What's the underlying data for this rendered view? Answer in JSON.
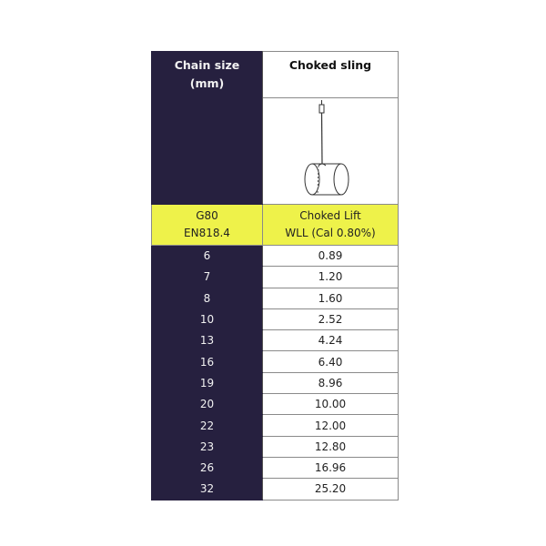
{
  "header": {
    "col1": "Chain size",
    "col1_unit": "(mm)",
    "col2": "Choked sling"
  },
  "subheader": {
    "col1_line1": "G80",
    "col1_line2": "EN818.4",
    "col2_line1": "Choked Lift",
    "col2_line2": "WLL (Cal 0.80%)"
  },
  "colors": {
    "dark": "#26203f",
    "highlight": "#eef24a"
  },
  "illustration": "choked-sling-drum-icon",
  "rows": [
    {
      "size": "6",
      "wll": "0.89"
    },
    {
      "size": "7",
      "wll": "1.20"
    },
    {
      "size": "8",
      "wll": "1.60"
    },
    {
      "size": "10",
      "wll": "2.52"
    },
    {
      "size": "13",
      "wll": "4.24"
    },
    {
      "size": "16",
      "wll": "6.40"
    },
    {
      "size": "19",
      "wll": "8.96"
    },
    {
      "size": "20",
      "wll": "10.00"
    },
    {
      "size": "22",
      "wll": "12.00"
    },
    {
      "size": "23",
      "wll": "12.80"
    },
    {
      "size": "26",
      "wll": "16.96"
    },
    {
      "size": "32",
      "wll": "25.20"
    }
  ]
}
